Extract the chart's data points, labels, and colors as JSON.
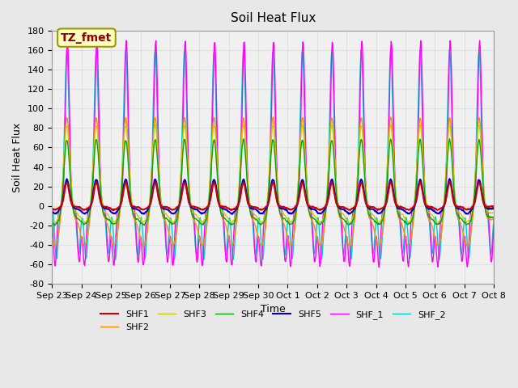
{
  "title": "Soil Heat Flux",
  "ylabel": "Soil Heat Flux",
  "xlabel": "Time",
  "annotation_text": "TZ_fmet",
  "annotation_box_color": "#FFFFC0",
  "annotation_text_color": "#8B0000",
  "annotation_border_color": "#999900",
  "ylim": [
    -80,
    180
  ],
  "series_colors": {
    "SHF1": "#CC0000",
    "SHF2": "#FF8C00",
    "SHF3": "#CCCC00",
    "SHF4": "#00AA00",
    "SHF5": "#0000CC",
    "SHF_1": "#FF00FF",
    "SHF_2": "#00CCCC"
  },
  "xtick_labels": [
    "Sep 23",
    "Sep 24",
    "Sep 25",
    "Sep 26",
    "Sep 27",
    "Sep 28",
    "Sep 29",
    "Sep 30",
    "Oct 1",
    "Oct 2",
    "Oct 3",
    "Oct 4",
    "Oct 5",
    "Oct 6",
    "Oct 7",
    "Oct 8"
  ],
  "ytick_labels": [
    -80,
    -60,
    -40,
    -20,
    0,
    20,
    40,
    60,
    80,
    100,
    120,
    140,
    160,
    180
  ],
  "grid_color": "#E0E0E0",
  "bg_color": "#E8E8E8",
  "plot_bg_color": "#F0F0F0",
  "n_days": 15,
  "points_per_day": 48,
  "legend_entries": [
    "SHF1",
    "SHF2",
    "SHF3",
    "SHF4",
    "SHF5",
    "SHF_1",
    "SHF_2"
  ]
}
